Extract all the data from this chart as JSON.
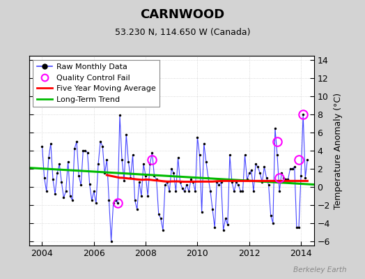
{
  "title": "CARNWOOD",
  "subtitle": "53.230 N, 114.650 W (Canada)",
  "ylabel_right": "Temperature Anomaly (°C)",
  "watermark": "Berkeley Earth",
  "ylim": [
    -6.5,
    14.5
  ],
  "xlim": [
    2003.5,
    2014.5
  ],
  "yticks": [
    -6,
    -4,
    -2,
    0,
    2,
    4,
    6,
    8,
    10,
    12,
    14
  ],
  "xticks": [
    2004,
    2006,
    2008,
    2010,
    2012,
    2014
  ],
  "fig_bg_color": "#d3d3d3",
  "plot_bg_color": "#ffffff",
  "raw_color": "#4444ff",
  "raw_marker_color": "#000000",
  "ma_color": "#ff0000",
  "trend_color": "#00bb00",
  "qc_color": "#ff00ff",
  "raw_x": [
    2004.0,
    2004.083,
    2004.167,
    2004.25,
    2004.333,
    2004.417,
    2004.5,
    2004.583,
    2004.667,
    2004.75,
    2004.833,
    2004.917,
    2005.0,
    2005.083,
    2005.167,
    2005.25,
    2005.333,
    2005.417,
    2005.5,
    2005.583,
    2005.667,
    2005.75,
    2005.833,
    2005.917,
    2006.0,
    2006.083,
    2006.167,
    2006.25,
    2006.333,
    2006.417,
    2006.5,
    2006.583,
    2006.667,
    2006.75,
    2006.833,
    2006.917,
    2007.0,
    2007.083,
    2007.167,
    2007.25,
    2007.333,
    2007.417,
    2007.5,
    2007.583,
    2007.667,
    2007.75,
    2007.833,
    2007.917,
    2008.0,
    2008.083,
    2008.167,
    2008.25,
    2008.333,
    2008.417,
    2008.5,
    2008.583,
    2008.667,
    2008.75,
    2008.833,
    2008.917,
    2009.0,
    2009.083,
    2009.167,
    2009.25,
    2009.333,
    2009.417,
    2009.5,
    2009.583,
    2009.667,
    2009.75,
    2009.833,
    2009.917,
    2010.0,
    2010.083,
    2010.167,
    2010.25,
    2010.333,
    2010.417,
    2010.5,
    2010.583,
    2010.667,
    2010.75,
    2010.833,
    2010.917,
    2011.0,
    2011.083,
    2011.167,
    2011.25,
    2011.333,
    2011.417,
    2011.5,
    2011.583,
    2011.667,
    2011.75,
    2011.833,
    2011.917,
    2012.0,
    2012.083,
    2012.167,
    2012.25,
    2012.333,
    2012.417,
    2012.5,
    2012.583,
    2012.667,
    2012.75,
    2012.833,
    2012.917,
    2013.0,
    2013.083,
    2013.167,
    2013.25,
    2013.333,
    2013.417,
    2013.5,
    2013.583,
    2013.667,
    2013.75,
    2013.833,
    2013.917,
    2014.0,
    2014.083,
    2014.167,
    2014.25
  ],
  "raw_y": [
    4.5,
    1.0,
    -0.5,
    3.2,
    4.8,
    0.8,
    -0.8,
    1.5,
    2.5,
    0.5,
    -1.2,
    -0.5,
    2.8,
    -1.0,
    -1.5,
    4.2,
    5.0,
    1.2,
    0.2,
    4.0,
    4.0,
    3.8,
    0.3,
    -1.5,
    -0.5,
    -1.8,
    2.5,
    5.0,
    4.5,
    1.5,
    3.0,
    -1.5,
    -6.0,
    -1.8,
    -1.5,
    -1.8,
    7.9,
    3.0,
    0.7,
    5.8,
    2.8,
    1.0,
    3.5,
    -1.5,
    -2.5,
    0.5,
    -1.0,
    2.5,
    1.2,
    -1.0,
    2.5,
    3.8,
    1.2,
    0.8,
    -3.0,
    -3.5,
    -4.8,
    0.2,
    0.5,
    -0.5,
    2.0,
    1.5,
    -0.5,
    3.2,
    0.5,
    -0.2,
    -0.5,
    0.2,
    -0.5,
    0.8,
    0.5,
    -0.5,
    5.5,
    3.5,
    -2.8,
    4.8,
    2.8,
    1.0,
    -0.5,
    -2.5,
    -4.5,
    0.5,
    0.2,
    0.5,
    -4.8,
    -3.5,
    -4.2,
    3.5,
    0.5,
    -0.5,
    0.5,
    0.2,
    -0.5,
    -0.5,
    3.5,
    0.8,
    1.5,
    1.8,
    -0.5,
    2.5,
    2.2,
    1.5,
    0.5,
    2.2,
    1.0,
    0.2,
    -3.2,
    -4.0,
    6.5,
    3.5,
    -0.5,
    1.5,
    1.0,
    0.8,
    0.8,
    2.0,
    2.0,
    2.2,
    -4.5,
    -4.5,
    1.2,
    8.0,
    1.0,
    3.0
  ],
  "ma_x": [
    2006.5,
    2006.583,
    2006.667,
    2006.75,
    2006.833,
    2006.917,
    2007.0,
    2007.083,
    2007.167,
    2007.25,
    2007.333,
    2007.417,
    2007.5,
    2007.583,
    2007.667,
    2007.75,
    2007.833,
    2007.917,
    2008.0,
    2008.083,
    2008.167,
    2008.25,
    2008.333,
    2008.417,
    2008.5,
    2008.583,
    2008.667,
    2008.75,
    2008.833,
    2008.917,
    2009.0,
    2009.083,
    2009.167,
    2009.25,
    2009.333,
    2009.417,
    2009.5,
    2009.583,
    2009.667,
    2009.75,
    2009.833,
    2009.917,
    2010.0,
    2010.083,
    2010.167,
    2010.25,
    2010.333,
    2010.417,
    2010.5,
    2010.583,
    2010.667,
    2010.75,
    2010.833,
    2010.917,
    2011.0,
    2011.083,
    2011.167,
    2011.25,
    2011.333,
    2011.417,
    2011.5,
    2011.583,
    2011.667,
    2011.75,
    2011.833,
    2011.917,
    2012.0,
    2012.083,
    2012.167,
    2012.25,
    2012.333,
    2012.417,
    2012.5,
    2012.583,
    2012.667,
    2012.75,
    2012.833,
    2012.917,
    2013.0,
    2013.083,
    2013.167,
    2013.25,
    2013.333,
    2013.417,
    2013.5,
    2013.583,
    2013.667,
    2013.75,
    2013.833,
    2013.917,
    2014.0,
    2014.083,
    2014.167,
    2014.25
  ],
  "ma_y": [
    1.3,
    1.25,
    1.2,
    1.15,
    1.1,
    1.05,
    1.0,
    1.0,
    0.98,
    0.95,
    0.92,
    0.9,
    0.88,
    0.85,
    0.82,
    0.8,
    0.78,
    0.78,
    0.8,
    0.8,
    0.78,
    0.75,
    0.72,
    0.7,
    0.68,
    0.65,
    0.62,
    0.6,
    0.58,
    0.58,
    0.6,
    0.6,
    0.6,
    0.6,
    0.58,
    0.57,
    0.56,
    0.56,
    0.56,
    0.57,
    0.57,
    0.57,
    0.58,
    0.58,
    0.58,
    0.58,
    0.58,
    0.58,
    0.58,
    0.58,
    0.6,
    0.62,
    0.63,
    0.65,
    0.65,
    0.65,
    0.65,
    0.65,
    0.65,
    0.65,
    0.65,
    0.65,
    0.65,
    0.65,
    0.65,
    0.65,
    0.65,
    0.65,
    0.65,
    0.65,
    0.65,
    0.65,
    0.65,
    0.65,
    0.65,
    0.65,
    0.65,
    0.65,
    0.65,
    0.65,
    0.65,
    0.65,
    0.65,
    0.65,
    0.65,
    0.65,
    0.65,
    0.65,
    0.65,
    0.65,
    0.65,
    0.65,
    0.65,
    0.65
  ],
  "trend_x": [
    2003.5,
    2014.5
  ],
  "trend_y": [
    2.1,
    0.25
  ],
  "qc_x": [
    2006.917,
    2008.25,
    2013.083,
    2013.167,
    2013.917,
    2014.083
  ],
  "qc_y": [
    -1.8,
    3.0,
    5.0,
    1.0,
    3.0,
    8.0
  ],
  "grid_color": "#cccccc",
  "grid_linestyle": ":",
  "tick_labelsize": 9,
  "legend_fontsize": 8
}
